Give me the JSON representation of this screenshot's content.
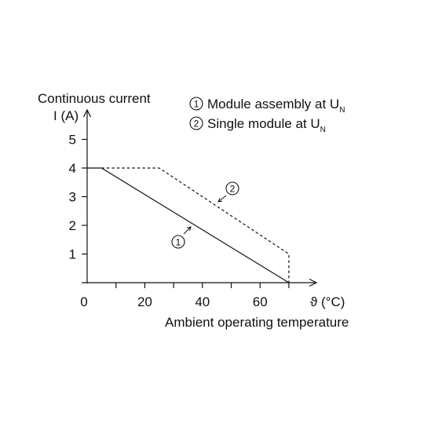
{
  "chart_data": {
    "type": "line",
    "ylabel_line1": "Continuous current",
    "ylabel_line2": "I (A)",
    "xlabel": "Ambient operating temperature",
    "x_axis_symbol": "ϑ (°C)",
    "xlim": [
      0,
      70
    ],
    "ylim": [
      0,
      5
    ],
    "x_ticks": [
      "0",
      "20",
      "40",
      "60"
    ],
    "x_tick_values": [
      0,
      20,
      40,
      60
    ],
    "x_minor_ticks": [
      10,
      30,
      50,
      70
    ],
    "y_ticks": [
      "1",
      "2",
      "3",
      "4",
      "5"
    ],
    "y_tick_values": [
      1,
      2,
      3,
      4,
      5
    ],
    "grid": false,
    "legend_position": "top-right",
    "series": [
      {
        "marker": "1",
        "name": "Module assembly at U",
        "name_sub": "N",
        "style": "solid",
        "x": [
          0,
          5,
          70
        ],
        "y": [
          4,
          4,
          0
        ]
      },
      {
        "marker": "2",
        "name": "Single module at U",
        "name_sub": "N",
        "style": "dashed",
        "x": [
          5,
          25,
          70,
          70
        ],
        "y": [
          4,
          4,
          1,
          0
        ]
      }
    ]
  }
}
